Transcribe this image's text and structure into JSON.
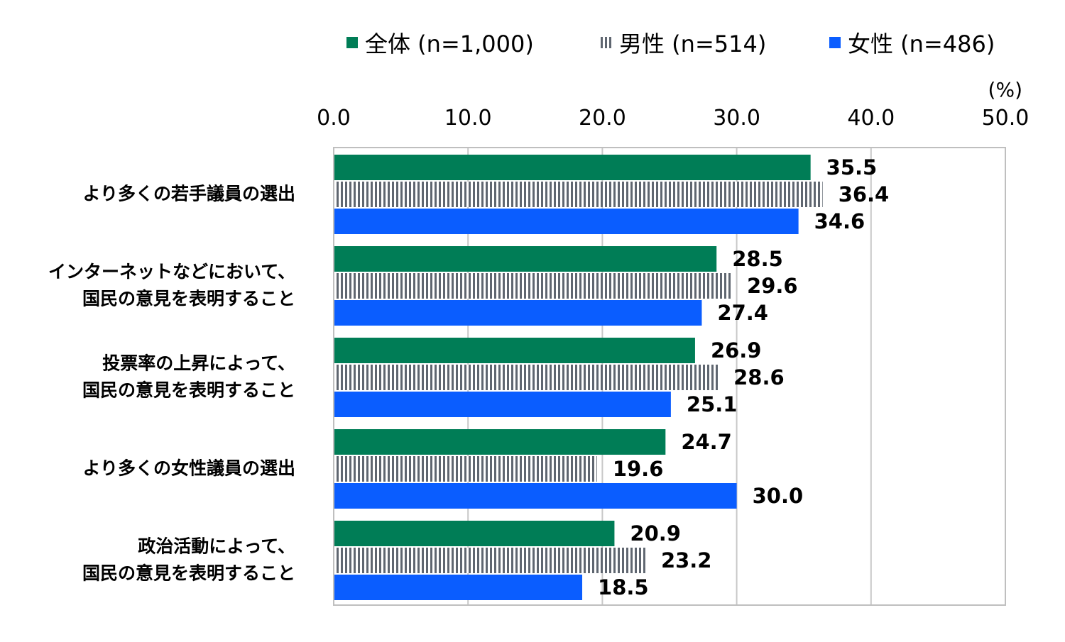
{
  "chart_data": {
    "type": "bar",
    "orientation": "horizontal",
    "unit": "(%)",
    "xlim": [
      0,
      50
    ],
    "ticks": [
      "0.0",
      "10.0",
      "20.0",
      "30.0",
      "40.0",
      "50.0"
    ],
    "grid": true,
    "legend_position": "top",
    "categories": [
      [
        "より多くの若手議員の選出"
      ],
      [
        "インターネットなどにおいて、",
        "国民の意見を表明すること"
      ],
      [
        "投票率の上昇によって、",
        "国民の意見を表明すること"
      ],
      [
        "より多くの女性議員の選出"
      ],
      [
        "政治活動によって、",
        "国民の意見を表明すること"
      ]
    ],
    "series": [
      {
        "name": "全体 (n=1,000)",
        "color": "#007D56",
        "pattern": "solid",
        "values": [
          35.5,
          28.5,
          26.9,
          24.7,
          20.9
        ],
        "labels": [
          "35.5",
          "28.5",
          "26.9",
          "24.7",
          "20.9"
        ]
      },
      {
        "name": "男性 (n=514)",
        "color": "#5F6670",
        "pattern": "vertical-stripes",
        "values": [
          36.4,
          29.6,
          28.6,
          19.6,
          23.2
        ],
        "labels": [
          "36.4",
          "29.6",
          "28.6",
          "19.6",
          "23.2"
        ]
      },
      {
        "name": "女性 (n=486)",
        "color": "#0A5DFF",
        "pattern": "solid",
        "values": [
          34.6,
          27.4,
          25.1,
          30.0,
          18.5
        ],
        "labels": [
          "34.6",
          "27.4",
          "25.1",
          "30.0",
          "18.5"
        ]
      }
    ]
  }
}
